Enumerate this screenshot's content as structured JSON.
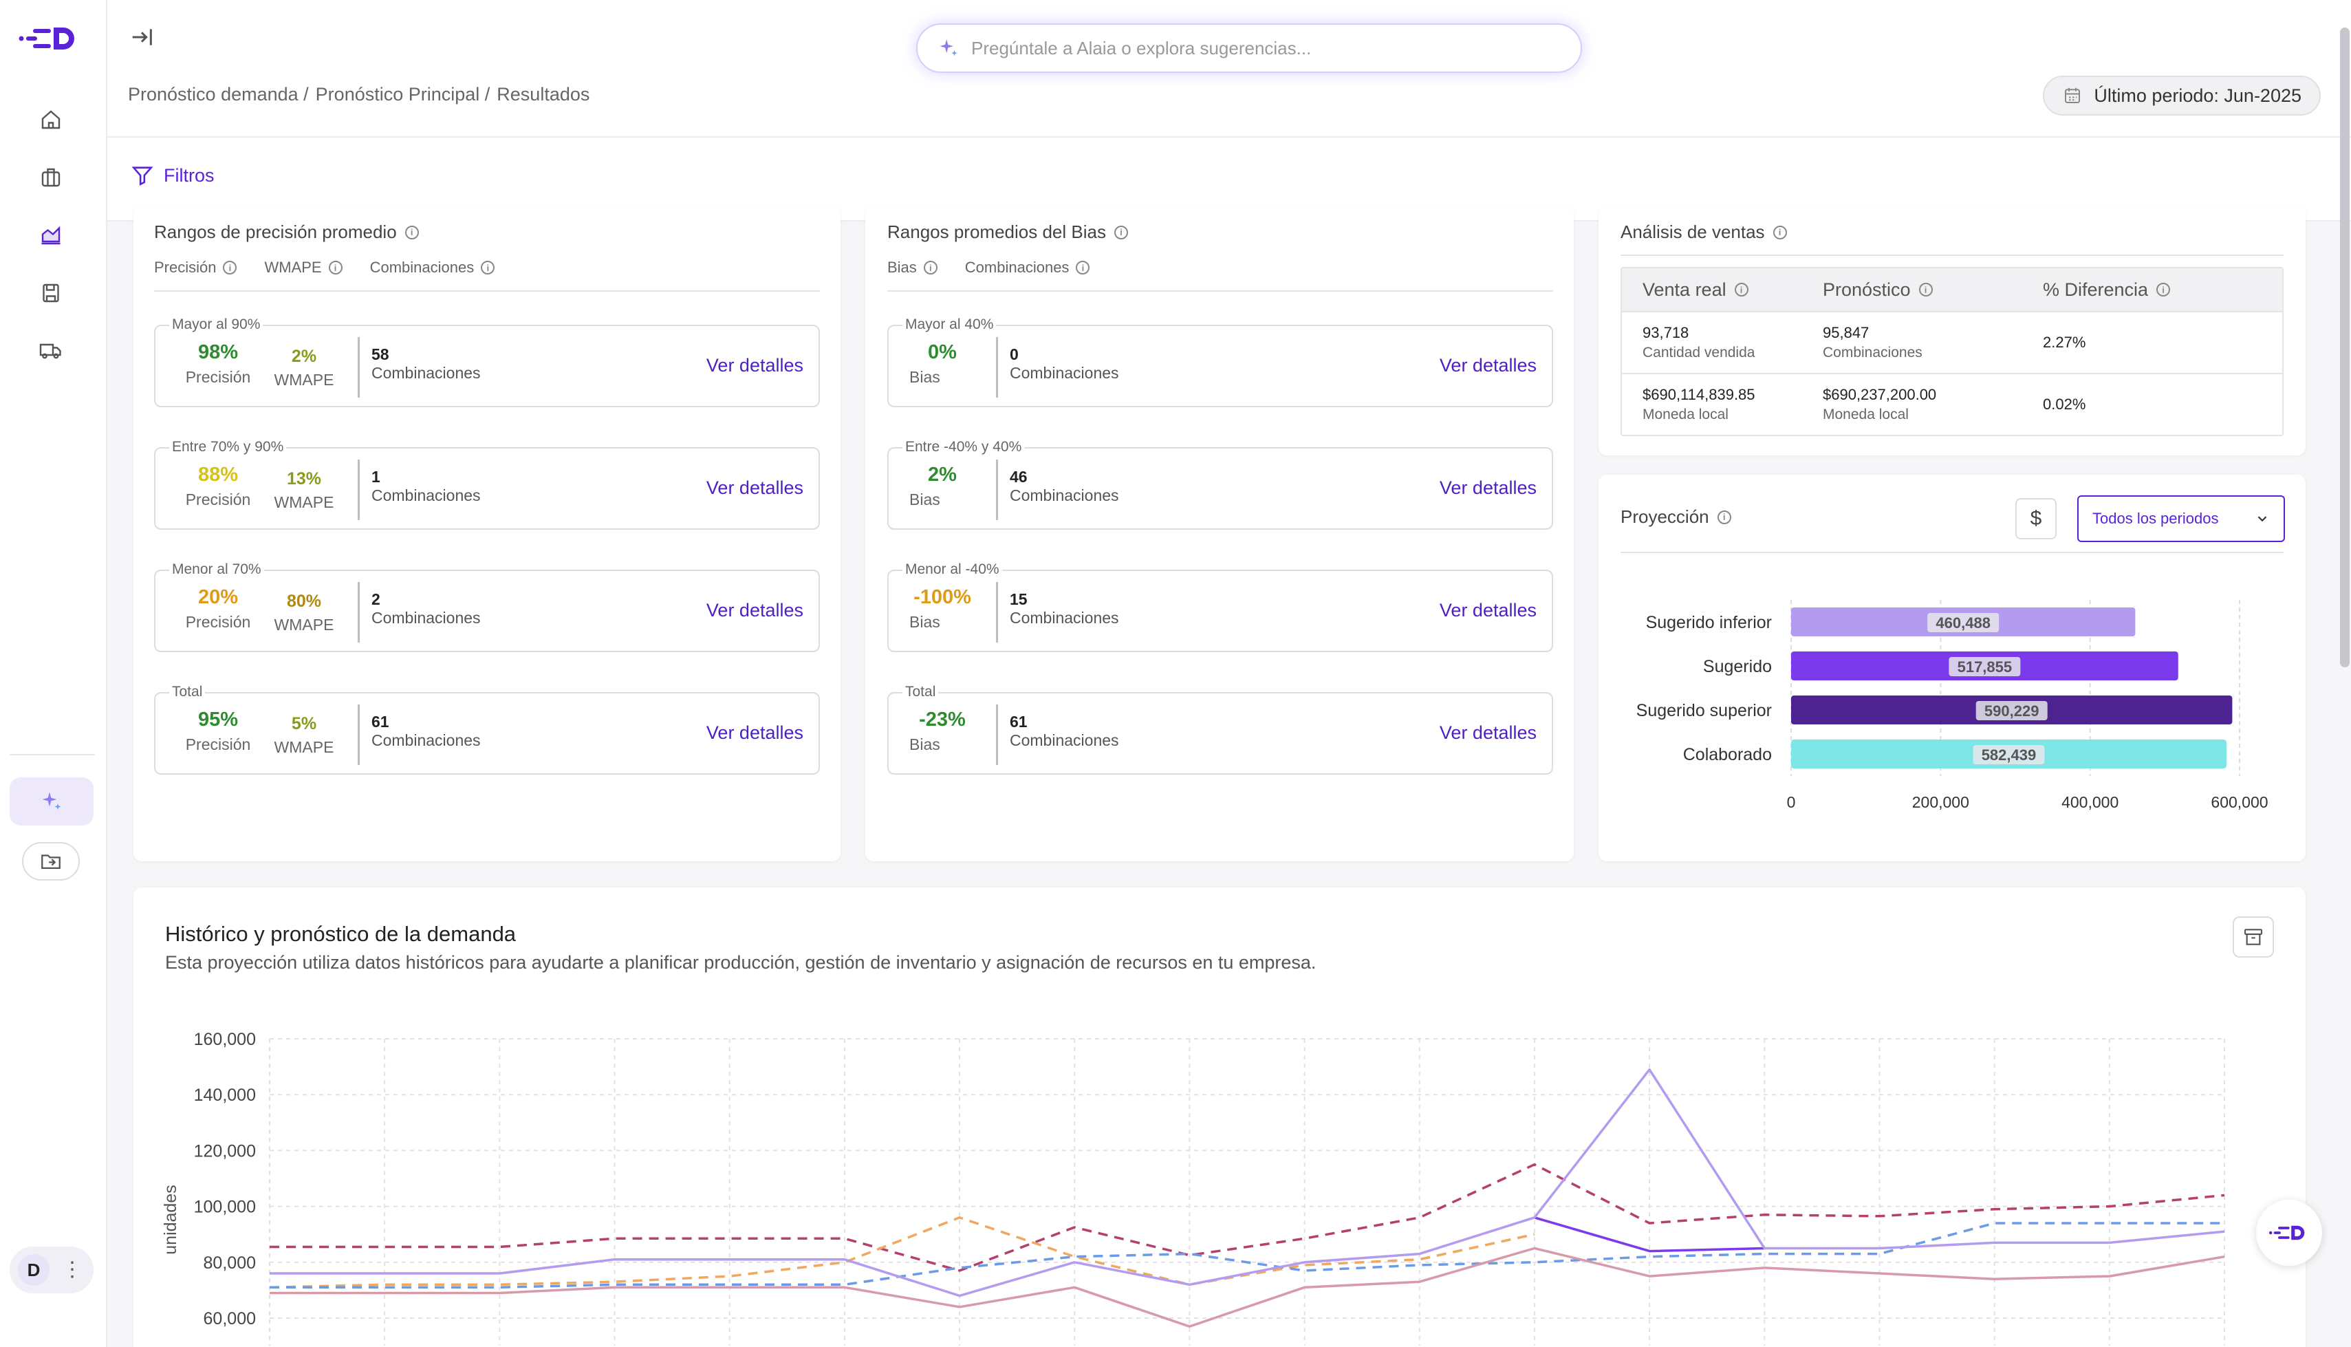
{
  "search": {
    "placeholder": "Pregúntale a Alaia o explora sugerencias..."
  },
  "breadcrumb": [
    "Pronóstico demanda /",
    "Pronóstico Principal /",
    "Resultados"
  ],
  "period": {
    "label": "Último periodo: Jun-2025"
  },
  "filters": {
    "label": "Filtros"
  },
  "user": {
    "initial": "D"
  },
  "precision": {
    "title": "Rangos de precisión promedio",
    "tabs": [
      "Precisión",
      "WMAPE",
      "Combinaciones"
    ],
    "ranges": [
      {
        "label": "Mayor al 90%",
        "precision": "98%",
        "precision_color": "#2e8b2e",
        "wmape": "2%",
        "wmape_color": "#8a9a1a",
        "precision_label": "Precisión",
        "wmape_label": "WMAPE",
        "count": "58",
        "count_label": "Combinaciones",
        "link": "Ver detalles"
      },
      {
        "label": "Entre 70% y 90%",
        "precision": "88%",
        "precision_color": "#d6c21a",
        "wmape": "13%",
        "wmape_color": "#8a9a1a",
        "precision_label": "Precisión",
        "wmape_label": "WMAPE",
        "count": "1",
        "count_label": "Combinaciones",
        "link": "Ver detalles"
      },
      {
        "label": "Menor al 70%",
        "precision": "20%",
        "precision_color": "#e09a1a",
        "wmape": "80%",
        "wmape_color": "#b08a10",
        "precision_label": "Precisión",
        "wmape_label": "WMAPE",
        "count": "2",
        "count_label": "Combinaciones",
        "link": "Ver detalles"
      },
      {
        "label": "Total",
        "precision": "95%",
        "precision_color": "#2e8b2e",
        "wmape": "5%",
        "wmape_color": "#8a9a1a",
        "precision_label": "Precisión",
        "wmape_label": "WMAPE",
        "count": "61",
        "count_label": "Combinaciones",
        "link": "Ver detalles"
      }
    ]
  },
  "bias": {
    "title": "Rangos promedios del Bias",
    "tabs": [
      "Bias",
      "Combinaciones"
    ],
    "ranges": [
      {
        "label": "Mayor al 40%",
        "value": "0%",
        "color": "#2e8b2e",
        "value_label": "Bias",
        "count": "0",
        "count_label": "Combinaciones",
        "link": "Ver detalles"
      },
      {
        "label": "Entre -40% y 40%",
        "value": "2%",
        "color": "#2e8b2e",
        "value_label": "Bias",
        "count": "46",
        "count_label": "Combinaciones",
        "link": "Ver detalles"
      },
      {
        "label": "Menor al -40%",
        "value": "-100%",
        "color": "#e09a1a",
        "value_label": "Bias",
        "count": "15",
        "count_label": "Combinaciones",
        "link": "Ver detalles"
      },
      {
        "label": "Total",
        "value": "-23%",
        "color": "#2e8b2e",
        "value_label": "Bias",
        "count": "61",
        "count_label": "Combinaciones",
        "link": "Ver detalles"
      }
    ]
  },
  "sales": {
    "title": "Análisis de ventas",
    "headers": [
      "Venta real",
      "Pronóstico",
      "% Diferencia"
    ],
    "rows": [
      {
        "real": "93,718",
        "real_sub": "Cantidad vendida",
        "forecast": "95,847",
        "forecast_sub": "Combinaciones",
        "diff": "2.27%"
      },
      {
        "real": "$690,114,839.85",
        "real_sub": "Moneda local",
        "forecast": "$690,237,200.00",
        "forecast_sub": "Moneda local",
        "diff": "0.02%"
      }
    ]
  },
  "projection": {
    "title": "Proyección",
    "currency_symbol": "$",
    "select_value": "Todos los periodos"
  },
  "history": {
    "title": "Histórico y pronóstico de la demanda",
    "subtitle": "Esta proyección utiliza datos históricos para ayudarte a planificar producción, gestión de inventario y asignación de recursos en tu empresa."
  },
  "chart_data": [
    {
      "type": "bar",
      "orientation": "horizontal",
      "categories": [
        "Sugerido inferior",
        "Sugerido",
        "Sugerido superior",
        "Colaborado"
      ],
      "values": [
        460488,
        517855,
        590229,
        582439
      ],
      "value_labels": [
        "460,488",
        "517,855",
        "590,229",
        "582,439"
      ],
      "colors": [
        "#b39cf0",
        "#7c3aed",
        "#4c2391",
        "#7ee6e6"
      ],
      "xlim": [
        0,
        600000
      ],
      "x_ticks": [
        "0",
        "200,000",
        "400,000",
        "600,000"
      ],
      "grid": true
    },
    {
      "type": "line",
      "ylabel": "unidades",
      "ylim": [
        60000,
        160000
      ],
      "y_ticks": [
        "160,000",
        "140,000",
        "120,000",
        "100,000",
        "80,000",
        "60,000"
      ],
      "x": [
        0,
        1,
        2,
        3,
        4,
        5,
        6,
        7,
        8,
        9,
        10,
        11,
        12,
        13,
        14,
        15,
        16,
        17
      ],
      "grid": true,
      "series": [
        {
          "color": "#b5406e",
          "dash": true,
          "values": [
            85500,
            85500,
            85500,
            88500,
            88500,
            88500,
            77000,
            92500,
            82500,
            88500,
            96000,
            115000,
            94000,
            97000,
            96500,
            99000,
            100000,
            104000
          ]
        },
        {
          "color": "#f0a860",
          "dash": true,
          "values": [
            71000,
            72000,
            72000,
            73000,
            75000,
            80000,
            96000,
            82000,
            72000,
            79000,
            81000,
            90000,
            null,
            null,
            null,
            null,
            null,
            null
          ]
        },
        {
          "color": "#6a9ae8",
          "dash": true,
          "values": [
            71000,
            71000,
            71000,
            72000,
            72000,
            72000,
            78000,
            82000,
            83000,
            77000,
            79000,
            80000,
            82000,
            83000,
            83000,
            94000,
            94000,
            94000
          ]
        },
        {
          "color": "#7c3aed",
          "dash": false,
          "values": [
            null,
            null,
            null,
            null,
            null,
            null,
            null,
            null,
            null,
            null,
            null,
            96000,
            84000,
            85000,
            null,
            null,
            null,
            null
          ]
        },
        {
          "color": "#b39cf0",
          "dash": false,
          "values": [
            76000,
            76000,
            76000,
            81000,
            81000,
            81000,
            68000,
            80000,
            72000,
            80000,
            83000,
            96000,
            149000,
            85000,
            85000,
            87000,
            87000,
            91000
          ]
        },
        {
          "color": "#d89aa8",
          "dash": false,
          "values": [
            69000,
            69000,
            69000,
            71000,
            71000,
            71000,
            64000,
            71000,
            57000,
            71000,
            73000,
            85000,
            75000,
            78000,
            76000,
            74000,
            75000,
            82000
          ]
        }
      ]
    }
  ]
}
